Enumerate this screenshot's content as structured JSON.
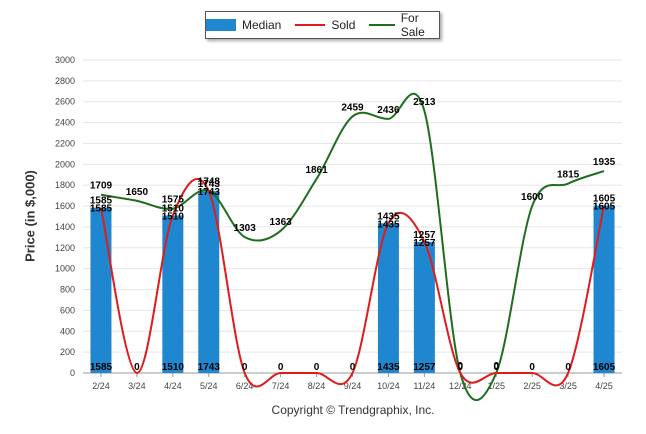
{
  "chart_data": {
    "type": "bar",
    "title": "",
    "ylabel": "Price (in $,000)",
    "xlabel": "",
    "ylim": [
      0,
      3000
    ],
    "yticks": [
      0,
      200,
      400,
      600,
      800,
      1000,
      1200,
      1400,
      1600,
      1800,
      2000,
      2200,
      2400,
      2600,
      2800,
      3000
    ],
    "categories": [
      "2/24",
      "3/24",
      "4/24",
      "5/24",
      "6/24",
      "7/24",
      "8/24",
      "9/24",
      "10/24",
      "11/24",
      "12/24",
      "1/25",
      "2/25",
      "3/25",
      "4/25"
    ],
    "series": [
      {
        "name": "Median",
        "kind": "bar",
        "color": "#1f87d0",
        "values": [
          1585,
          0,
          1510,
          1743,
          0,
          0,
          0,
          0,
          1435,
          1257,
          0,
          0,
          0,
          0,
          1605
        ]
      },
      {
        "name": "Sold",
        "kind": "line",
        "color": "#e01b1b",
        "values": [
          1585,
          0,
          1510,
          1743,
          0,
          0,
          0,
          0,
          1435,
          1257,
          0,
          0,
          0,
          0,
          1605
        ]
      },
      {
        "name": "For Sale",
        "kind": "line",
        "color": "#1e6e1e",
        "values": [
          1709,
          1650,
          1575,
          1748,
          1303,
          1363,
          1861,
          2459,
          2436,
          2513,
          0,
          0,
          1600,
          1815,
          1935
        ]
      }
    ],
    "legend_position": "top-center",
    "grid": true
  },
  "footer": {
    "copyright": "Copyright © Trendgraphix, Inc."
  }
}
